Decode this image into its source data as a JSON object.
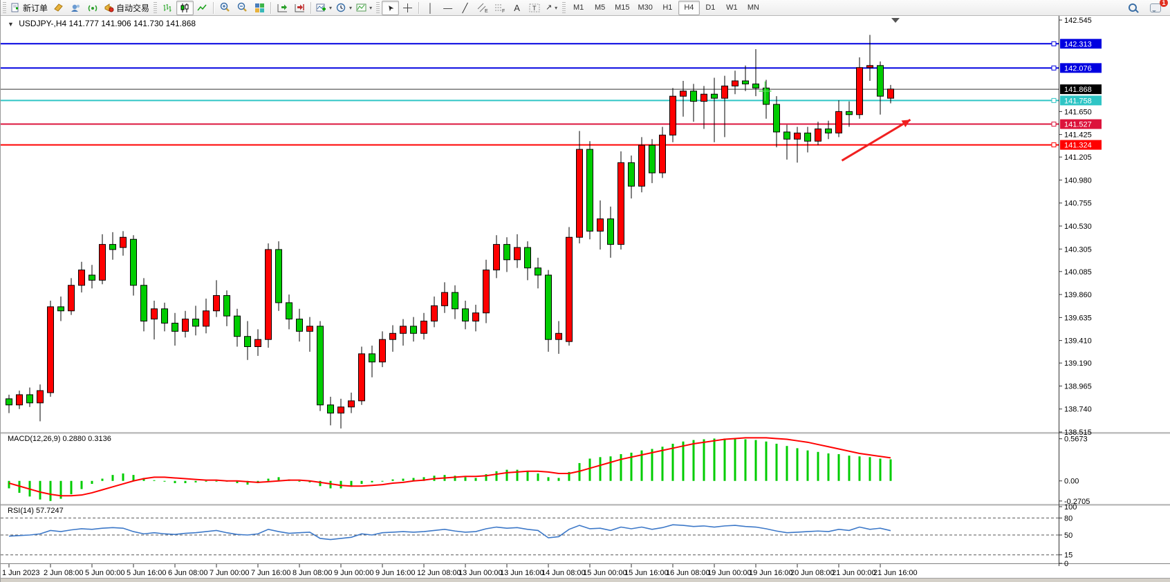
{
  "toolbar": {
    "new_order_label": "新订单",
    "autotrading_label": "自动交易",
    "timeframes": [
      "M1",
      "M5",
      "M15",
      "M30",
      "H1",
      "H4",
      "D1",
      "W1",
      "MN"
    ],
    "active_timeframe": "H4",
    "notification_count": "1"
  },
  "chart": {
    "symbol_period": "USDJPY-,H4",
    "ohlc_text": "141.777 141.906 141.730 141.868"
  },
  "indicators_display": {
    "macd": "MACD(12,26,9) 0.2880 0.3136",
    "rsi": "RSI(14) 57.7247"
  },
  "chart_data": {
    "type": "candlestick",
    "symbol": "USDJPY-",
    "timeframe": "H4",
    "current_bar": {
      "open": 141.777,
      "high": 141.906,
      "low": 141.73,
      "close": 141.868
    },
    "colors": {
      "bull": "#ff0000",
      "bear": "#00cc00",
      "wick": "#000000",
      "macd_hist": "#00cc00",
      "macd_signal": "#ff0000",
      "rsi_line": "#3c78c8",
      "axis_text": "#000000"
    },
    "ylim": [
      138.515,
      142.545
    ],
    "y_ticks": [
      142.545,
      141.65,
      141.425,
      141.205,
      140.98,
      140.755,
      140.53,
      140.305,
      140.085,
      139.86,
      139.635,
      139.41,
      139.19,
      138.965,
      138.74,
      138.515
    ],
    "hlines": [
      {
        "price": 142.313,
        "label": "142.313",
        "color": "#0000e0",
        "width": 2,
        "anchor": true
      },
      {
        "price": 142.076,
        "label": "142.076",
        "color": "#0000e0",
        "width": 2,
        "anchor": true
      },
      {
        "price": 141.868,
        "label": "141.868",
        "color": "#333333",
        "width": 1,
        "tag_bg": "#000000",
        "bid": true
      },
      {
        "price": 141.758,
        "label": "141.758",
        "color": "#2fc5c5",
        "width": 2,
        "anchor": true
      },
      {
        "price": 141.527,
        "label": "141.527",
        "color": "#dc143c",
        "width": 2,
        "anchor": true
      },
      {
        "price": 141.324,
        "label": "141.324",
        "color": "#ff0000",
        "width": 2,
        "anchor": true
      }
    ],
    "x_labels": [
      "1 Jun 2023",
      "2 Jun 08:00",
      "5 Jun 00:00",
      "5 Jun 16:00",
      "6 Jun 08:00",
      "7 Jun 00:00",
      "7 Jun 16:00",
      "8 Jun 08:00",
      "9 Jun 00:00",
      "9 Jun 16:00",
      "12 Jun 08:00",
      "13 Jun 00:00",
      "13 Jun 16:00",
      "14 Jun 08:00",
      "15 Jun 00:00",
      "15 Jun 16:00",
      "16 Jun 08:00",
      "19 Jun 00:00",
      "19 Jun 16:00",
      "20 Jun 08:00",
      "21 Jun 00:00",
      "21 Jun 16:00"
    ],
    "x_label_every_n_candles": 4,
    "candles": [
      [
        138.84,
        138.88,
        138.7,
        138.78
      ],
      [
        138.78,
        138.92,
        138.74,
        138.88
      ],
      [
        138.88,
        138.95,
        138.76,
        138.8
      ],
      [
        138.8,
        138.98,
        138.62,
        138.92
      ],
      [
        138.9,
        139.8,
        138.86,
        139.74
      ],
      [
        139.74,
        139.84,
        139.6,
        139.7
      ],
      [
        139.7,
        140.02,
        139.66,
        139.95
      ],
      [
        139.95,
        140.18,
        139.88,
        140.1
      ],
      [
        140.05,
        140.15,
        139.92,
        140.0
      ],
      [
        140.0,
        140.45,
        139.96,
        140.35
      ],
      [
        140.35,
        140.47,
        140.2,
        140.3
      ],
      [
        140.32,
        140.48,
        140.24,
        140.42
      ],
      [
        140.4,
        140.44,
        139.85,
        139.95
      ],
      [
        139.95,
        140.02,
        139.5,
        139.6
      ],
      [
        139.62,
        139.8,
        139.42,
        139.72
      ],
      [
        139.72,
        139.78,
        139.5,
        139.58
      ],
      [
        139.58,
        139.68,
        139.36,
        139.5
      ],
      [
        139.5,
        139.7,
        139.44,
        139.62
      ],
      [
        139.62,
        139.75,
        139.46,
        139.55
      ],
      [
        139.55,
        139.82,
        139.48,
        139.7
      ],
      [
        139.7,
        140.0,
        139.64,
        139.85
      ],
      [
        139.85,
        139.9,
        139.55,
        139.65
      ],
      [
        139.65,
        139.72,
        139.35,
        139.45
      ],
      [
        139.45,
        139.6,
        139.22,
        139.35
      ],
      [
        139.35,
        139.52,
        139.26,
        139.42
      ],
      [
        139.42,
        140.36,
        139.34,
        140.3
      ],
      [
        140.3,
        140.38,
        139.7,
        139.78
      ],
      [
        139.78,
        139.86,
        139.52,
        139.62
      ],
      [
        139.62,
        139.72,
        139.4,
        139.5
      ],
      [
        139.5,
        139.64,
        139.3,
        139.55
      ],
      [
        139.55,
        139.6,
        138.72,
        138.78
      ],
      [
        138.78,
        138.86,
        138.58,
        138.7
      ],
      [
        138.7,
        138.84,
        138.55,
        138.76
      ],
      [
        138.76,
        138.9,
        138.7,
        138.82
      ],
      [
        138.82,
        139.35,
        138.78,
        139.28
      ],
      [
        139.28,
        139.36,
        139.05,
        139.2
      ],
      [
        139.2,
        139.5,
        139.15,
        139.42
      ],
      [
        139.42,
        139.56,
        139.3,
        139.48
      ],
      [
        139.48,
        139.62,
        139.36,
        139.55
      ],
      [
        139.55,
        139.64,
        139.4,
        139.48
      ],
      [
        139.48,
        139.68,
        139.42,
        139.6
      ],
      [
        139.6,
        139.84,
        139.54,
        139.75
      ],
      [
        139.75,
        139.98,
        139.68,
        139.88
      ],
      [
        139.88,
        139.95,
        139.62,
        139.72
      ],
      [
        139.72,
        139.8,
        139.52,
        139.6
      ],
      [
        139.6,
        139.76,
        139.5,
        139.68
      ],
      [
        139.68,
        140.2,
        139.58,
        140.1
      ],
      [
        140.1,
        140.44,
        140.02,
        140.35
      ],
      [
        140.35,
        140.42,
        140.08,
        140.2
      ],
      [
        140.2,
        140.45,
        140.12,
        140.32
      ],
      [
        140.32,
        140.38,
        140.0,
        140.12
      ],
      [
        140.12,
        140.22,
        139.92,
        140.05
      ],
      [
        140.05,
        140.1,
        139.3,
        139.42
      ],
      [
        139.42,
        139.6,
        139.28,
        139.48
      ],
      [
        139.4,
        140.52,
        139.36,
        140.42
      ],
      [
        140.42,
        141.46,
        140.36,
        141.28
      ],
      [
        141.28,
        141.36,
        140.4,
        140.48
      ],
      [
        140.48,
        140.78,
        140.3,
        140.6
      ],
      [
        140.6,
        140.72,
        140.22,
        140.35
      ],
      [
        140.35,
        141.26,
        140.3,
        141.15
      ],
      [
        141.15,
        141.22,
        140.8,
        140.92
      ],
      [
        140.92,
        141.4,
        140.86,
        141.32
      ],
      [
        141.32,
        141.38,
        140.95,
        141.05
      ],
      [
        141.05,
        141.5,
        141.0,
        141.42
      ],
      [
        141.42,
        141.88,
        141.35,
        141.8
      ],
      [
        141.8,
        141.95,
        141.6,
        141.85
      ],
      [
        141.85,
        141.92,
        141.55,
        141.75
      ],
      [
        141.75,
        141.9,
        141.48,
        141.82
      ],
      [
        141.82,
        141.98,
        141.35,
        141.78
      ],
      [
        141.78,
        142.0,
        141.4,
        141.9
      ],
      [
        141.9,
        142.05,
        141.82,
        141.95
      ],
      [
        141.95,
        142.1,
        141.85,
        141.92
      ],
      [
        141.92,
        142.26,
        141.8,
        141.88
      ],
      [
        141.88,
        141.96,
        141.58,
        141.72
      ],
      [
        141.72,
        141.8,
        141.3,
        141.45
      ],
      [
        141.45,
        141.52,
        141.18,
        141.38
      ],
      [
        141.38,
        141.5,
        141.15,
        141.44
      ],
      [
        141.44,
        141.5,
        141.25,
        141.36
      ],
      [
        141.36,
        141.55,
        141.32,
        141.48
      ],
      [
        141.48,
        141.56,
        141.38,
        141.44
      ],
      [
        141.44,
        141.76,
        141.4,
        141.65
      ],
      [
        141.65,
        141.75,
        141.5,
        141.62
      ],
      [
        141.62,
        142.18,
        141.58,
        142.08
      ],
      [
        142.08,
        142.4,
        141.95,
        142.1
      ],
      [
        142.1,
        142.14,
        141.62,
        141.8
      ],
      [
        141.78,
        141.91,
        141.73,
        141.87
      ]
    ],
    "objects": {
      "trend_arrow": {
        "from_candle": 80.3,
        "from_price": 141.17,
        "to_candle": 86.9,
        "to_price": 141.57,
        "color": "#f02020"
      },
      "cross_marker": {
        "candle": 72.9,
        "price": 141.85,
        "color": "#55dd55"
      }
    },
    "indicators": {
      "macd": {
        "label": "MACD(12,26,9)",
        "value": "0.2880",
        "signal_value": "0.3136",
        "ylim": [
          -0.3,
          0.63
        ],
        "y_ticks": [
          {
            "v": 0.5673,
            "t": "0.5673"
          },
          {
            "v": 0.0,
            "t": "0.00"
          },
          {
            "v": -0.2705,
            "t": "-0.2705"
          }
        ],
        "histogram": [
          -0.1,
          -0.16,
          -0.21,
          -0.25,
          -0.27,
          -0.24,
          -0.18,
          -0.11,
          -0.04,
          0.03,
          0.08,
          0.1,
          0.08,
          0.04,
          0.01,
          -0.01,
          -0.03,
          -0.03,
          -0.02,
          -0.01,
          0.0,
          -0.01,
          -0.03,
          -0.05,
          -0.03,
          0.03,
          0.05,
          0.02,
          -0.01,
          -0.02,
          -0.07,
          -0.1,
          -0.1,
          -0.08,
          -0.04,
          -0.02,
          0.0,
          0.02,
          0.03,
          0.04,
          0.05,
          0.07,
          0.08,
          0.07,
          0.05,
          0.04,
          0.09,
          0.13,
          0.15,
          0.15,
          0.13,
          0.1,
          0.05,
          0.04,
          0.12,
          0.24,
          0.3,
          0.32,
          0.33,
          0.36,
          0.38,
          0.41,
          0.43,
          0.46,
          0.5,
          0.53,
          0.55,
          0.56,
          0.57,
          0.57,
          0.57,
          0.56,
          0.55,
          0.53,
          0.5,
          0.47,
          0.44,
          0.41,
          0.39,
          0.37,
          0.36,
          0.34,
          0.33,
          0.32,
          0.3,
          0.29
        ],
        "signal": [
          -0.03,
          -0.07,
          -0.11,
          -0.15,
          -0.18,
          -0.2,
          -0.2,
          -0.19,
          -0.16,
          -0.12,
          -0.08,
          -0.04,
          0.0,
          0.03,
          0.05,
          0.05,
          0.04,
          0.03,
          0.02,
          0.01,
          0.01,
          0.0,
          0.0,
          -0.01,
          -0.02,
          -0.01,
          0.0,
          0.01,
          0.01,
          0.0,
          -0.02,
          -0.04,
          -0.06,
          -0.07,
          -0.07,
          -0.06,
          -0.05,
          -0.03,
          -0.02,
          0.0,
          0.01,
          0.03,
          0.04,
          0.05,
          0.06,
          0.06,
          0.07,
          0.09,
          0.11,
          0.12,
          0.13,
          0.13,
          0.12,
          0.1,
          0.1,
          0.13,
          0.17,
          0.21,
          0.25,
          0.29,
          0.32,
          0.35,
          0.38,
          0.41,
          0.44,
          0.47,
          0.5,
          0.52,
          0.54,
          0.56,
          0.57,
          0.58,
          0.58,
          0.58,
          0.57,
          0.56,
          0.54,
          0.52,
          0.49,
          0.46,
          0.43,
          0.4,
          0.37,
          0.35,
          0.33,
          0.31
        ]
      },
      "rsi": {
        "label": "RSI(14)",
        "value": "57.7247",
        "ylim": [
          0,
          100
        ],
        "levels": [
          80,
          50,
          15
        ],
        "y_ticks": [
          {
            "v": 100,
            "t": "100"
          },
          {
            "v": 80,
            "t": "80"
          },
          {
            "v": 50,
            "t": "50"
          },
          {
            "v": 15,
            "t": "15"
          },
          {
            "v": 0,
            "t": "0"
          }
        ],
        "values": [
          48,
          49,
          50,
          52,
          58,
          56,
          59,
          61,
          60,
          62,
          63,
          62,
          56,
          52,
          54,
          52,
          51,
          53,
          54,
          56,
          58,
          54,
          51,
          50,
          52,
          60,
          56,
          53,
          54,
          55,
          44,
          42,
          44,
          46,
          52,
          50,
          54,
          55,
          56,
          55,
          56,
          58,
          60,
          57,
          55,
          56,
          61,
          64,
          62,
          63,
          60,
          58,
          45,
          47,
          60,
          67,
          61,
          62,
          58,
          64,
          61,
          64,
          60,
          63,
          68,
          67,
          65,
          66,
          64,
          66,
          67,
          65,
          64,
          61,
          57,
          54,
          55,
          56,
          57,
          56,
          60,
          58,
          64,
          60,
          62,
          57.7
        ]
      }
    }
  }
}
